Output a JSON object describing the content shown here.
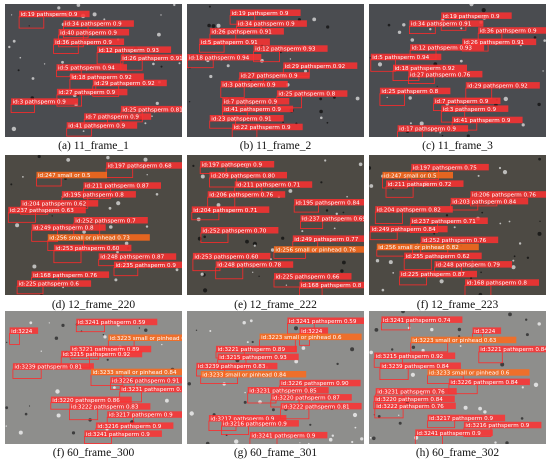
{
  "figure": {
    "panels": [
      {
        "caption": "(a) 11_frame_1",
        "background": "#4a4c50",
        "detections": [
          {
            "label": "id:19 pathsperm",
            "score": "0.9"
          },
          {
            "label": "id:34 pathsperm",
            "score": "0.9"
          },
          {
            "label": "id:40 pathsperm",
            "score": "0.9"
          },
          {
            "label": "id:36 pathsperm",
            "score": "0.9"
          },
          {
            "label": "id:12 pathsperm",
            "score": "0.93"
          },
          {
            "label": "id:26 pathsperm",
            "score": "0.91"
          },
          {
            "label": "id:5 pathsperm",
            "score": "0.94"
          },
          {
            "label": "id:18 pathsperm",
            "score": "0.92"
          },
          {
            "label": "id:29 pathsperm",
            "score": "0.92"
          },
          {
            "label": "id:27 pathsperm",
            "score": "0.9"
          },
          {
            "label": "id:3 pathsperm",
            "score": "0.9"
          },
          {
            "label": "id:25 pathsperm",
            "score": "0.81"
          },
          {
            "label": "id:7 pathsperm",
            "score": "0.9"
          },
          {
            "label": "id:41 pathsperm",
            "score": "0.9"
          }
        ]
      },
      {
        "caption": "(b) 11_frame_2",
        "background": "#4a4c50",
        "detections": [
          {
            "label": "id:19 pathsperm",
            "score": "0.9"
          },
          {
            "label": "id:34 pathsperm",
            "score": "0.9"
          },
          {
            "label": "id:26 pathsperm",
            "score": "0.91"
          },
          {
            "label": "id:5 pathsperm",
            "score": "0.91"
          },
          {
            "label": "id:12 pathsperm",
            "score": "0.93"
          },
          {
            "label": "id:18 pathsperm",
            "score": "0.94"
          },
          {
            "label": "id:29 pathsperm",
            "score": "0.92"
          },
          {
            "label": "id:27 pathsperm",
            "score": "0.9"
          },
          {
            "label": "id:3 pathsperm",
            "score": "0.9"
          },
          {
            "label": "id:25 pathsperm",
            "score": "0.8"
          },
          {
            "label": "id:7 pathsperm",
            "score": "0.9"
          },
          {
            "label": "id:41 pathsperm",
            "score": "0.9"
          },
          {
            "label": "id:23 pathsperm",
            "score": "0.91"
          },
          {
            "label": "id:22 pathsperm",
            "score": "0.9"
          }
        ]
      },
      {
        "caption": "(c) 11_frame_3",
        "background": "#4a4c50",
        "detections": [
          {
            "label": "id:19 pathsperm",
            "score": "0.9"
          },
          {
            "label": "id:34 pathsperm",
            "score": "0.91"
          },
          {
            "label": "id:36 pathsperm",
            "score": "0.9"
          },
          {
            "label": "id:26 pathsperm",
            "score": "0.91"
          },
          {
            "label": "id:12 pathsperm",
            "score": "0.93"
          },
          {
            "label": "id:5 pathsperm",
            "score": "0.94"
          },
          {
            "label": "id:18 pathsperm",
            "score": "0.92"
          },
          {
            "label": "id:27 pathsperm",
            "score": "0.76"
          },
          {
            "label": "id:29 pathsperm",
            "score": "0.92"
          },
          {
            "label": "id:25 pathsperm",
            "score": "0.8"
          },
          {
            "label": "id:7 pathsperm",
            "score": "0.9"
          },
          {
            "label": "id:3 pathsperm",
            "score": "0.9"
          },
          {
            "label": "id:41 pathsperm",
            "score": "0.9"
          },
          {
            "label": "id:17 pathsperm",
            "score": "0.9"
          }
        ]
      },
      {
        "caption": "(d) 12_frame_220",
        "background": "#4d4a44",
        "detections": [
          {
            "label": "id:197 pathsperm",
            "score": "0.68"
          },
          {
            "label": "id:247 small or",
            "score": "0.5"
          },
          {
            "label": "id:211 pathsperm",
            "score": "0.87"
          },
          {
            "label": "id:195 pathsperm",
            "score": "0.8"
          },
          {
            "label": "id:204 pathsperm",
            "score": "0.62"
          },
          {
            "label": "id:237 pathsperm",
            "score": "0.63"
          },
          {
            "label": "id:252 pathsperm",
            "score": "0.7"
          },
          {
            "label": "id:249 pathsperm",
            "score": "0.8"
          },
          {
            "label": "id:256 small or pinhead",
            "score": "0.73"
          },
          {
            "label": "id:253 pathsperm",
            "score": "0.60"
          },
          {
            "label": "id:248 pathsperm",
            "score": "0.87"
          },
          {
            "label": "id:235 pathsperm",
            "score": "0.9"
          },
          {
            "label": "id:168 pathsperm",
            "score": "0.76"
          },
          {
            "label": "id:225 pathsperm",
            "score": "0.6"
          }
        ]
      },
      {
        "caption": "(e) 12_frame_222",
        "background": "#4d4a44",
        "detections": [
          {
            "label": "id:197 pathsperm",
            "score": "0.9"
          },
          {
            "label": "id:209 pathsperm",
            "score": "0.80"
          },
          {
            "label": "id:211 pathsperm",
            "score": "0.71"
          },
          {
            "label": "id:206 pathsperm",
            "score": "0.76"
          },
          {
            "label": "id:195 pathsperm",
            "score": "0.84"
          },
          {
            "label": "id:204 pathsperm",
            "score": "0.71"
          },
          {
            "label": "id:237 pathsperm",
            "score": "0.69"
          },
          {
            "label": "id:252 pathsperm",
            "score": "0.70"
          },
          {
            "label": "id:249 pathsperm",
            "score": "0.77"
          },
          {
            "label": "id:256 small or pinhead",
            "score": "0.76"
          },
          {
            "label": "id:253 pathsperm",
            "score": "0.60"
          },
          {
            "label": "id:248 pathsperm",
            "score": "0.78"
          },
          {
            "label": "id:225 pathsperm",
            "score": "0.66"
          },
          {
            "label": "id:168 pathsperm",
            "score": "0.8"
          }
        ]
      },
      {
        "caption": "(f) 12_frame_223",
        "background": "#4d4a44",
        "detections": [
          {
            "label": "id:197 pathsperm",
            "score": "0.75"
          },
          {
            "label": "id:247 small or",
            "score": "0.5"
          },
          {
            "label": "id:211 pathsperm",
            "score": "0.72"
          },
          {
            "label": "id:206 pathsperm",
            "score": "0.76"
          },
          {
            "label": "id:203 pathsperm",
            "score": "0.84"
          },
          {
            "label": "id:204 pathsperm",
            "score": "0.82"
          },
          {
            "label": "id:237 pathsperm",
            "score": "0.71"
          },
          {
            "label": "id:249 pathsperm",
            "score": "0.84"
          },
          {
            "label": "id:252 pathsperm",
            "score": "0.76"
          },
          {
            "label": "id:256 small or pinhead",
            "score": "0.82"
          },
          {
            "label": "id:255 pathsperm",
            "score": "0.62"
          },
          {
            "label": "id:248 pathsperm",
            "score": "0.79"
          },
          {
            "label": "id:225 pathsperm",
            "score": "0.87"
          },
          {
            "label": "id:168 pathsperm",
            "score": "0.8"
          }
        ]
      },
      {
        "caption": "(f) 60_frame_300",
        "background": "#8e8e8c",
        "detections": [
          {
            "label": "id:3241 pathsperm",
            "score": "0.59"
          },
          {
            "label": "id:3224",
            "score": ""
          },
          {
            "label": "id:3223 small or pinhead",
            "score": "0.6"
          },
          {
            "label": "id:3221 pathsperm",
            "score": "0.89"
          },
          {
            "label": "id:3215 pathsperm",
            "score": "0.92"
          },
          {
            "label": "id:3239 pathsperm",
            "score": "0.81"
          },
          {
            "label": "id:3233 small or pinhead",
            "score": "0.84"
          },
          {
            "label": "id:3226 pathsperm",
            "score": "0.91"
          },
          {
            "label": "id:3231 pathsperm",
            "score": "0.83"
          },
          {
            "label": "id:3220 pathsperm",
            "score": "0.86"
          },
          {
            "label": "id:3222 pathsperm",
            "score": "0.83"
          },
          {
            "label": "id:3217 pathsperm",
            "score": "0.9"
          },
          {
            "label": "id:3216 pathsperm",
            "score": "0.9"
          },
          {
            "label": "id:3241 pathsperm",
            "score": "0.9"
          }
        ]
      },
      {
        "caption": "(g) 60_frame_301",
        "background": "#8e8e8c",
        "detections": [
          {
            "label": "id:3241 pathsperm",
            "score": "0.59"
          },
          {
            "label": "id:3224",
            "score": ""
          },
          {
            "label": "id:3223 small or pinhead",
            "score": "0.6"
          },
          {
            "label": "id:3221 pathsperm",
            "score": "0.89"
          },
          {
            "label": "id:3215 pathsperm",
            "score": "0.93"
          },
          {
            "label": "id:3239 pathsperm",
            "score": "0.83"
          },
          {
            "label": "id:3233 small or pinhead",
            "score": "0.84"
          },
          {
            "label": "id:3226 pathsperm",
            "score": "0.90"
          },
          {
            "label": "id:3231 pathsperm",
            "score": "0.85"
          },
          {
            "label": "id:3220 pathsperm",
            "score": "0.87"
          },
          {
            "label": "id:3222 pathsperm",
            "score": "0.81"
          },
          {
            "label": "id:3217 pathsperm",
            "score": "0.9"
          },
          {
            "label": "id:3216 pathsperm",
            "score": "0.9"
          },
          {
            "label": "id:3241 pathsperm",
            "score": "0.9"
          }
        ]
      },
      {
        "caption": "(h) 60_frame_302",
        "background": "#8e8e8c",
        "detections": [
          {
            "label": "id:3241 pathsperm",
            "score": "0.74"
          },
          {
            "label": "id:3224",
            "score": ""
          },
          {
            "label": "id:3223 small or pinhead",
            "score": "0.63"
          },
          {
            "label": "id:3221 pathsperm",
            "score": "0.84"
          },
          {
            "label": "id:3215 pathsperm",
            "score": "0.92"
          },
          {
            "label": "id:3239 pathsperm",
            "score": "0.84"
          },
          {
            "label": "id:3233 small or pinhead",
            "score": "0.6"
          },
          {
            "label": "id:3226 pathsperm",
            "score": "0.84"
          },
          {
            "label": "id:3231 pathsperm",
            "score": "0.76"
          },
          {
            "label": "id:3220 pathsperm",
            "score": "0.84"
          },
          {
            "label": "id:3222 pathsperm",
            "score": "0.76"
          },
          {
            "label": "id:3217 pathsperm",
            "score": "0.9"
          },
          {
            "label": "id:3216 pathsperm",
            "score": "0.9"
          },
          {
            "label": "id:3241 pathsperm",
            "score": "0.9"
          }
        ]
      }
    ]
  }
}
